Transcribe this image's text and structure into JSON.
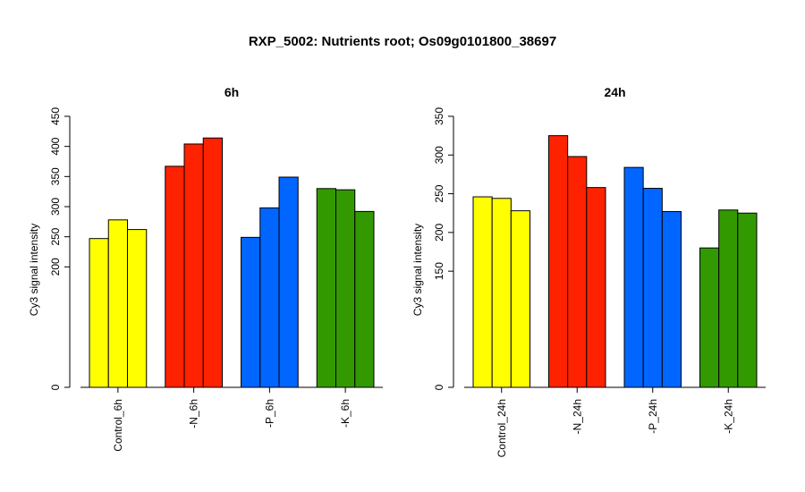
{
  "figure": {
    "title": "RXP_5002: Nutrients root; Os09g0101800_38697"
  },
  "chart_data": [
    {
      "type": "bar",
      "title": "6h",
      "xlabel": "",
      "ylabel": "Cy3 signal intensity",
      "ylim": [
        0,
        450
      ],
      "yticks": [
        "0",
        "200",
        "250",
        "300",
        "350",
        "400",
        "450"
      ],
      "groups": [
        {
          "label": "Control_6h",
          "color": "#ffff00",
          "values": [
            247,
            278,
            262
          ]
        },
        {
          "label": "-N_6h",
          "color": "#ff2200",
          "values": [
            367,
            404,
            414
          ]
        },
        {
          "label": "-P_6h",
          "color": "#0066ff",
          "values": [
            249,
            298,
            349
          ]
        },
        {
          "label": "-K_6h",
          "color": "#339900",
          "values": [
            330,
            328,
            292
          ]
        }
      ],
      "grid": false
    },
    {
      "type": "bar",
      "title": "24h",
      "xlabel": "",
      "ylabel": "Cy3 signal intensity",
      "ylim": [
        0,
        350
      ],
      "yticks": [
        "0",
        "150",
        "200",
        "250",
        "300",
        "350"
      ],
      "groups": [
        {
          "label": "Control_24h",
          "color": "#ffff00",
          "values": [
            246,
            244,
            228
          ]
        },
        {
          "label": "-N_24h",
          "color": "#ff2200",
          "values": [
            325,
            298,
            258
          ]
        },
        {
          "label": "-P_24h",
          "color": "#0066ff",
          "values": [
            284,
            257,
            227
          ]
        },
        {
          "label": "-K_24h",
          "color": "#339900",
          "values": [
            180,
            229,
            225
          ]
        }
      ],
      "grid": false
    }
  ]
}
